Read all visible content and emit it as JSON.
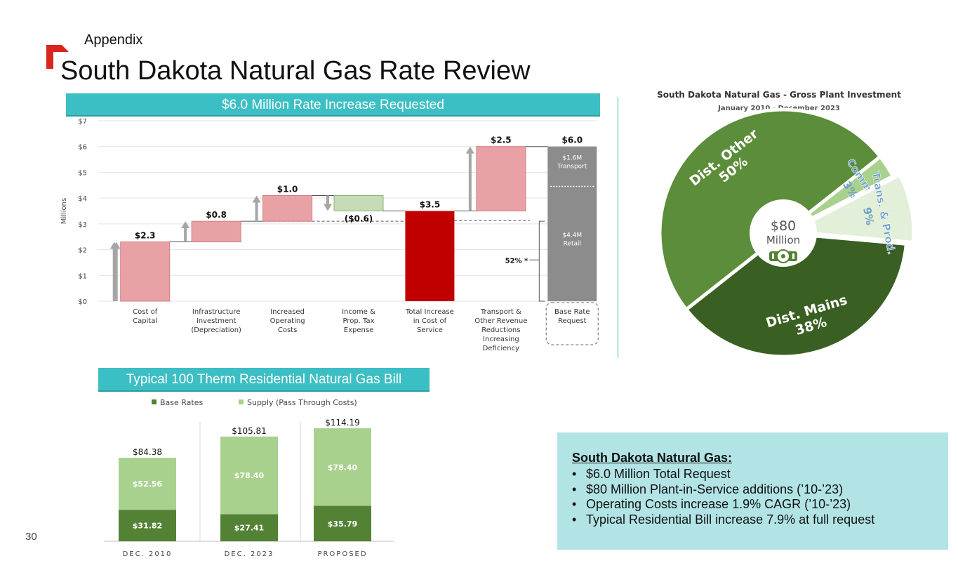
{
  "header": {
    "section": "Appendix",
    "title": "South Dakota Natural Gas Rate Review"
  },
  "page_number": "30",
  "colors": {
    "teal": "#3cbfc4",
    "pink": "#e8a2a6",
    "red": "#c00000",
    "gray": "#8c8c8c",
    "green_light": "#a9d18e",
    "green_dark": "#548235",
    "green_pie_dark": "#3a5f23",
    "green_pie_mid": "#5b8d3a",
    "accent": "#d9251d"
  },
  "waterfall": {
    "banner": "$6.0 Million Rate Increase Requested",
    "ylabel": "Millions",
    "annotation_pct": "52% *",
    "base_rate_split": [
      {
        "label": "$1.6M",
        "sub": "Transport"
      },
      {
        "label": "$4.4M",
        "sub": "Retail"
      }
    ]
  },
  "residential": {
    "banner": "Typical 100 Therm Residential Natural Gas Bill",
    "legend": [
      "Base Rates",
      "Supply (Pass Through Costs)"
    ]
  },
  "pie": {
    "title": "South Dakota Natural Gas - Gross Plant Investment",
    "subtitle": "January 2010 - December 2023",
    "center_value": "$80",
    "center_unit": "Million"
  },
  "summary": {
    "title": "South Dakota Natural Gas:",
    "bullets": [
      "$6.0 Million Total Request",
      "$80 Million Plant-in-Service additions (’10-’23)",
      "Operating Costs increase 1.9% CAGR (’10-’23)",
      "Typical Residential Bill increase 7.9% at full request"
    ]
  },
  "chart_data": [
    {
      "type": "bar",
      "subtype": "waterfall",
      "categories": [
        [
          "Cost of",
          "Capital"
        ],
        [
          "Infrastructure",
          "Investment",
          "(Depreciation)"
        ],
        [
          "Increased",
          "Operating",
          "Costs"
        ],
        [
          "Income &",
          "Prop. Tax",
          "Expense"
        ],
        [
          "Total Increase",
          "in Cost of",
          "Service"
        ],
        [
          "Transport &",
          "Other Revenue",
          "Reductions",
          "Increasing",
          "Deficiency"
        ],
        [
          "Base Rate",
          "Request"
        ]
      ],
      "bars": [
        {
          "start": 0,
          "end": 2.3,
          "label": "$2.3",
          "kind": "increase"
        },
        {
          "start": 2.3,
          "end": 3.1,
          "label": "$0.8",
          "kind": "increase"
        },
        {
          "start": 3.1,
          "end": 4.1,
          "label": "$1.0",
          "kind": "increase"
        },
        {
          "start": 4.1,
          "end": 3.5,
          "label": "($0.6)",
          "kind": "decrease"
        },
        {
          "start": 0,
          "end": 3.5,
          "label": "$3.5",
          "kind": "total"
        },
        {
          "start": 3.5,
          "end": 6.0,
          "label": "$2.5",
          "kind": "increase"
        },
        {
          "start": 0,
          "end": 6.0,
          "label": "$6.0",
          "kind": "request"
        }
      ],
      "ylim": [
        0,
        7
      ],
      "yticks": [
        "$0",
        "$1",
        "$2",
        "$3",
        "$4",
        "$5",
        "$6",
        "$7"
      ],
      "ylabel": "Millions",
      "grid": true
    },
    {
      "type": "bar",
      "subtype": "stacked",
      "categories": [
        "DEC. 2010",
        "DEC. 2023",
        "PROPOSED"
      ],
      "series": [
        {
          "name": "Base Rates",
          "values": [
            31.82,
            27.41,
            35.79
          ],
          "labels": [
            "$31.82",
            "$27.41",
            "$35.79"
          ]
        },
        {
          "name": "Supply (Pass Through Costs)",
          "values": [
            52.56,
            78.4,
            78.4
          ],
          "labels": [
            "$52.56",
            "$78.40",
            "$78.40"
          ]
        }
      ],
      "totals": [
        "$84.38",
        "$105.81",
        "$114.19"
      ],
      "legend": "top"
    },
    {
      "type": "pie",
      "slices": [
        {
          "name": "Dist. Mains",
          "value": 38,
          "label": "Dist. Mains 38%"
        },
        {
          "name": "Dist. Other",
          "value": 50,
          "label": "Dist. Other 50%"
        },
        {
          "name": "Common",
          "value": 3,
          "label": "Common 3%"
        },
        {
          "name": "Trans. & Prod.",
          "value": 9,
          "label": "Trans. & Prod. 9%"
        }
      ]
    }
  ]
}
